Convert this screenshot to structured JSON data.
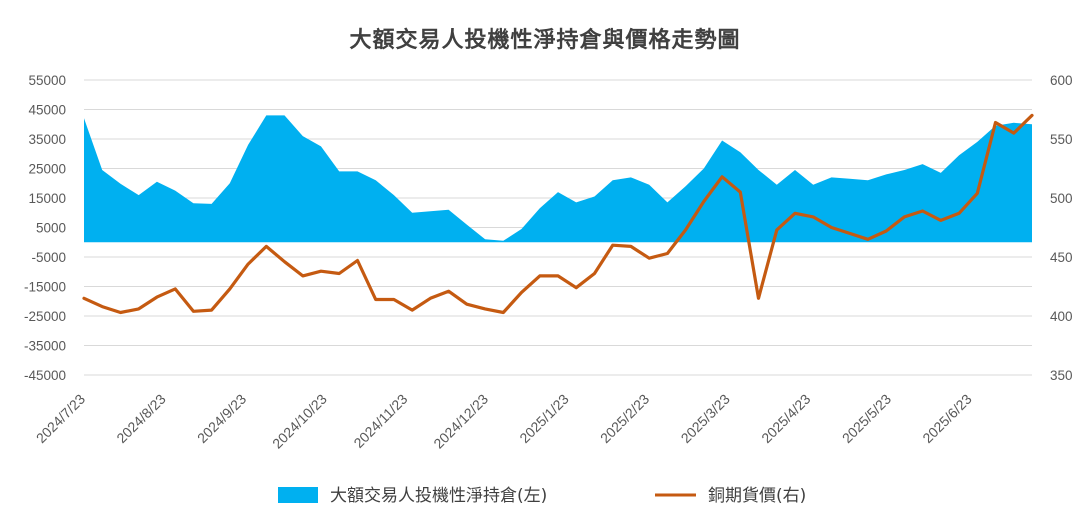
{
  "chart_data": {
    "type": "area",
    "title": "大額交易人投機性淨持倉與價格走勢圖",
    "x_tick_labels": [
      "2024/7/23",
      "2024/8/23",
      "2024/9/23",
      "2024/10/23",
      "2024/11/23",
      "2024/12/23",
      "2025/1/23",
      "2025/2/23",
      "2025/3/23",
      "2025/4/23",
      "2025/5/23",
      "2025/6/23"
    ],
    "y_left": {
      "min": -45000,
      "max": 55000,
      "step": 10000,
      "ticks": [
        "55000",
        "45000",
        "35000",
        "25000",
        "15000",
        "5000",
        "-5000",
        "-15000",
        "-25000",
        "-35000",
        "-45000"
      ]
    },
    "y_right": {
      "min": 350,
      "max": 600,
      "step": 50,
      "ticks": [
        "600",
        "550",
        "500",
        "450",
        "400",
        "350"
      ]
    },
    "grid": true,
    "legend_position": "bottom",
    "series": [
      {
        "name": "大額交易人投機性淨持倉(左)",
        "axis": "left",
        "kind": "area",
        "color": "#00B0F0",
        "values": [
          42000,
          24500,
          19800,
          16000,
          20500,
          17500,
          13200,
          13000,
          20000,
          33000,
          43000,
          43000,
          36000,
          32500,
          24000,
          24000,
          21000,
          16000,
          10000,
          10500,
          11000,
          6000,
          1000,
          500,
          4500,
          11500,
          17000,
          13500,
          15500,
          21000,
          22000,
          19500,
          13500,
          19000,
          25000,
          34500,
          30500,
          24500,
          19500,
          24500,
          19500,
          22000,
          21500,
          21000,
          23000,
          24500,
          26500,
          23500,
          29500,
          34000,
          39500,
          40500,
          40000
        ]
      },
      {
        "name": "銅期貨價(右)",
        "axis": "right",
        "kind": "line",
        "color": "#C55A11",
        "values": [
          415,
          408,
          403,
          406,
          416,
          423,
          404,
          405,
          423,
          444,
          459,
          446,
          434,
          438,
          436,
          447,
          414,
          414,
          405,
          415,
          421,
          410,
          406,
          403,
          420,
          434,
          434,
          424,
          436,
          460,
          459,
          449,
          453,
          473,
          497,
          518,
          505,
          415,
          473,
          487,
          484,
          475,
          470,
          465,
          472,
          484,
          489,
          481,
          487,
          504,
          564,
          555,
          570
        ]
      }
    ]
  }
}
